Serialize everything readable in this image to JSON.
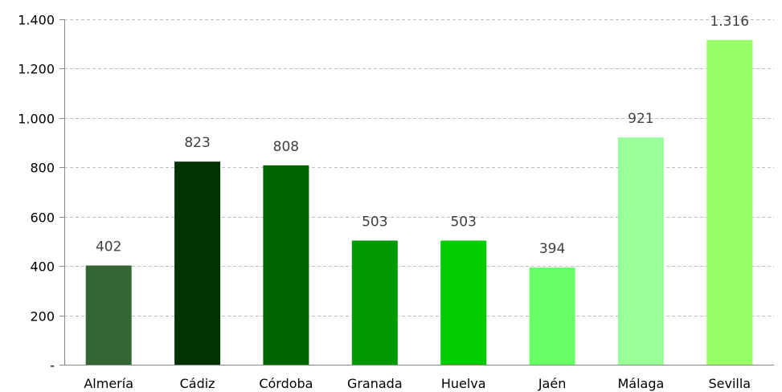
{
  "chart_data": {
    "type": "bar",
    "categories": [
      "Almería",
      "Cádiz",
      "Córdoba",
      "Granada",
      "Huelva",
      "Jaén",
      "Málaga",
      "Sevilla"
    ],
    "values": [
      402,
      823,
      808,
      503,
      503,
      394,
      921,
      1316
    ],
    "data_labels": [
      "402",
      "823",
      "808",
      "503",
      "503",
      "394",
      "921",
      "1.316"
    ],
    "bar_colors": [
      "#336633",
      "#003300",
      "#006600",
      "#009900",
      "#00cc00",
      "#66ff66",
      "#99ff99",
      "#99ff66"
    ],
    "ylim": [
      0,
      1400
    ],
    "yticks": [
      0,
      200,
      400,
      600,
      800,
      1000,
      1200,
      1400
    ],
    "ytick_labels": [
      "-",
      "200",
      "400",
      "600",
      "800",
      "1.000",
      "1.200",
      "1.400"
    ],
    "grid": true,
    "gridline_color": "#bfbfbf",
    "axis_color": "#868686",
    "legend": "none"
  }
}
